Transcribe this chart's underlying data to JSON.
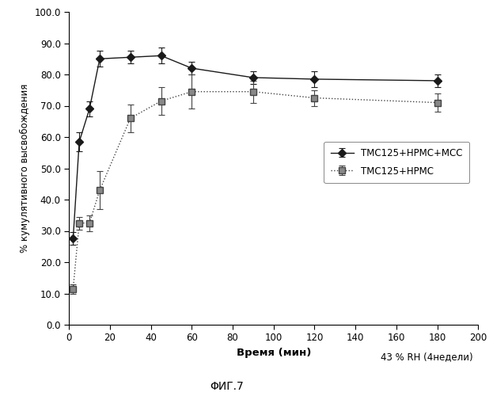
{
  "series1": {
    "label": "TMC125+HPMC+MCC",
    "x": [
      2,
      5,
      10,
      15,
      30,
      45,
      60,
      90,
      120,
      180
    ],
    "y": [
      27.5,
      58.5,
      69.0,
      85.0,
      85.5,
      86.0,
      82.0,
      79.0,
      78.5,
      78.0
    ],
    "yerr": [
      2.0,
      3.0,
      2.5,
      2.5,
      2.0,
      2.5,
      2.0,
      2.0,
      2.5,
      2.0
    ],
    "marker": "D",
    "linestyle": "-",
    "color": "#1a1a1a",
    "markersize": 5
  },
  "series2": {
    "label": "TMC125+HPMC",
    "x": [
      2,
      5,
      10,
      15,
      30,
      45,
      60,
      90,
      120,
      180
    ],
    "y": [
      11.5,
      32.5,
      32.5,
      43.0,
      66.0,
      71.5,
      74.5,
      74.5,
      72.5,
      71.0
    ],
    "yerr": [
      1.5,
      2.0,
      2.5,
      6.0,
      4.5,
      4.5,
      5.5,
      3.5,
      2.5,
      3.0
    ],
    "marker": "s",
    "linestyle": ":",
    "color": "#444444",
    "markersize": 6
  },
  "xlabel": "Время (мин)",
  "ylabel": "% кумулятивного высвобождения",
  "xlim": [
    0,
    200
  ],
  "ylim": [
    0,
    100
  ],
  "xticks": [
    0,
    20,
    40,
    60,
    80,
    100,
    120,
    140,
    160,
    180,
    200
  ],
  "yticks": [
    0.0,
    10.0,
    20.0,
    30.0,
    40.0,
    50.0,
    60.0,
    70.0,
    80.0,
    90.0,
    100.0
  ],
  "annotation": "43 % RH (4недели)",
  "fig_label": "ΦИГ.7",
  "background_color": "#ffffff"
}
